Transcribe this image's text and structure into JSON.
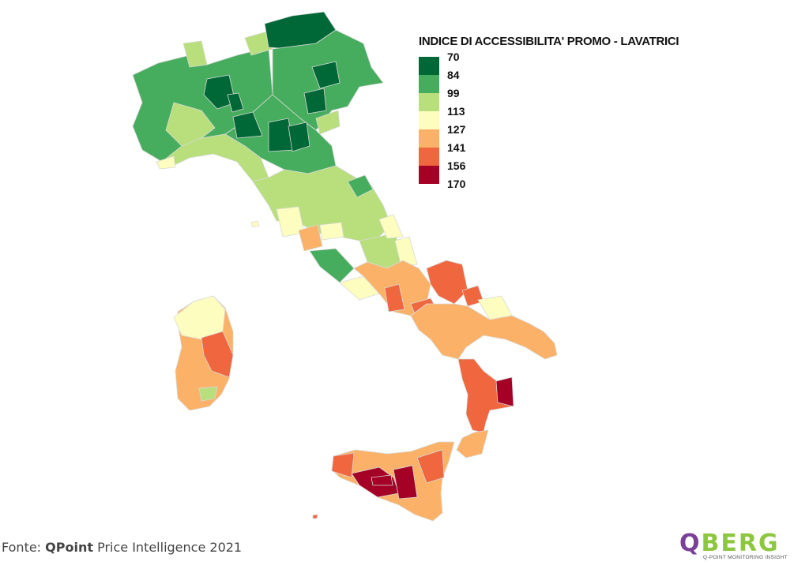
{
  "legend": {
    "title": "INDICE DI ACCESSIBILITA' PROMO - LAVATRICI",
    "items": [
      {
        "label": "70",
        "color": "#006837"
      },
      {
        "label": "84",
        "color": "#47ad5e"
      },
      {
        "label": "99",
        "color": "#b8df7c"
      },
      {
        "label": "113",
        "color": "#fefdc0"
      },
      {
        "label": "127",
        "color": "#fbb268"
      },
      {
        "label": "141",
        "color": "#f0663e"
      },
      {
        "label": "156",
        "color": "#a50026"
      }
    ],
    "max_label": "170"
  },
  "source": {
    "prefix": "Fonte: ",
    "brand": "QPoint",
    "rest": " Price Intelligence 2021"
  },
  "logo": {
    "text": "QBERG",
    "tagline": "Q-POINT MONITORING INSIGHT",
    "colors": {
      "q": "#7a3f98",
      "rest": "#8dc63f"
    }
  }
}
